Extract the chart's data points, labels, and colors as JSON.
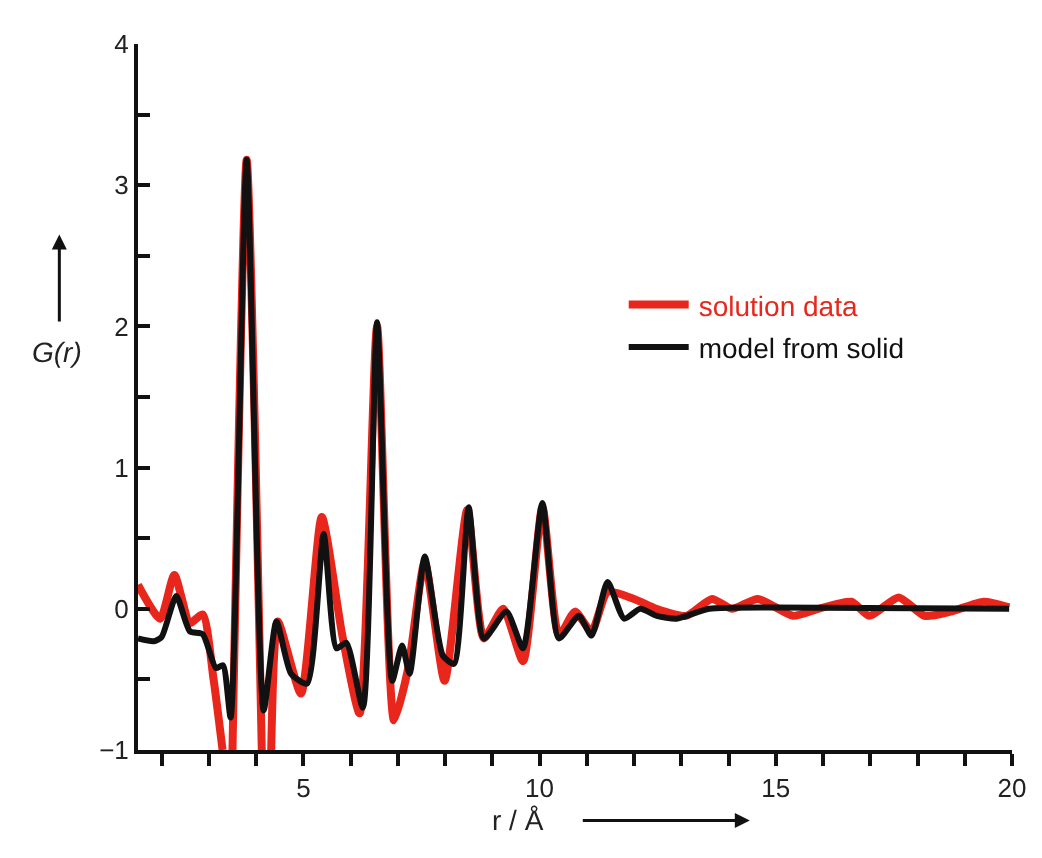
{
  "chart_data": {
    "type": "line",
    "xlabel": "r / Å",
    "ylabel": "G(r)",
    "xlim": [
      1.5,
      20
    ],
    "ylim": [
      -1,
      4
    ],
    "xticks": [
      {
        "value": 2,
        "label": null
      },
      {
        "value": 3,
        "label": null
      },
      {
        "value": 4,
        "label": null
      },
      5,
      {
        "value": 6,
        "label": null
      },
      {
        "value": 7,
        "label": null
      },
      {
        "value": 8,
        "label": null
      },
      {
        "value": 9,
        "label": null
      },
      10,
      {
        "value": 11,
        "label": null
      },
      {
        "value": 12,
        "label": null
      },
      {
        "value": 13,
        "label": null
      },
      {
        "value": 14,
        "label": null
      },
      15,
      {
        "value": 16,
        "label": null
      },
      {
        "value": 17,
        "label": null
      },
      {
        "value": 18,
        "label": null
      },
      {
        "value": 19,
        "label": null
      },
      20
    ],
    "yticks": [
      -1,
      {
        "value": -0.5,
        "label": null
      },
      0,
      {
        "value": 0.5,
        "label": null
      },
      1,
      {
        "value": 1.5,
        "label": null
      },
      2,
      {
        "value": 2.5,
        "label": null
      },
      3,
      {
        "value": 3.5,
        "label": null
      },
      4
    ],
    "legend": "top right",
    "line_style": "solid",
    "marker": "none",
    "series": [
      {
        "name": "solution data",
        "color": "#e8261c",
        "x": [
          1.5,
          1.97,
          2.27,
          2.6,
          2.87,
          3.1,
          3.29,
          3.4,
          3.5,
          3.8,
          4.12,
          4.22,
          4.32,
          4.46,
          4.95,
          5.39,
          5.82,
          6.19,
          6.56,
          6.92,
          7.22,
          7.57,
          7.99,
          8.47,
          8.82,
          9.23,
          9.65,
          10.06,
          10.41,
          10.75,
          11.1,
          11.44,
          12.0,
          12.47,
          13.1,
          13.65,
          14.07,
          14.62,
          15.37,
          15.9,
          16.6,
          16.98,
          17.6,
          18.15,
          18.7,
          19.4,
          19.94
        ],
        "values": [
          0.17,
          -0.07,
          0.24,
          -0.1,
          -0.04,
          -0.5,
          -1,
          null,
          -1,
          3.18,
          -1,
          null,
          -1,
          -0.09,
          -0.6,
          0.65,
          -0.18,
          -0.74,
          2.0,
          -0.79,
          -0.42,
          0.33,
          -0.51,
          0.7,
          -0.21,
          0.0,
          -0.37,
          0.72,
          -0.19,
          -0.02,
          -0.16,
          0.12,
          0.07,
          0.0,
          -0.05,
          0.07,
          0.0,
          0.07,
          -0.05,
          0.0,
          0.05,
          -0.05,
          0.08,
          -0.05,
          -0.02,
          0.05,
          0.01
        ]
      },
      {
        "name": "model from solid",
        "color": "#111111",
        "x": [
          1.5,
          1.83,
          2.0,
          2.31,
          2.6,
          2.87,
          3.15,
          3.3,
          3.46,
          3.8,
          4.16,
          4.43,
          4.74,
          5.08,
          5.43,
          5.7,
          5.91,
          6.26,
          6.56,
          6.88,
          7.09,
          7.25,
          7.57,
          7.95,
          8.19,
          8.5,
          8.82,
          9.3,
          9.65,
          10.06,
          10.41,
          10.83,
          11.1,
          11.44,
          11.79,
          12.13,
          12.48,
          12.9,
          13.59,
          14.97,
          19.94
        ],
        "values": [
          -0.21,
          -0.23,
          -0.2,
          0.09,
          -0.16,
          -0.18,
          -0.42,
          -0.4,
          -0.77,
          3.18,
          -0.72,
          -0.09,
          -0.46,
          -0.53,
          0.53,
          -0.28,
          -0.24,
          -0.7,
          2.03,
          -0.51,
          -0.26,
          -0.46,
          0.37,
          -0.33,
          -0.39,
          0.72,
          -0.21,
          -0.02,
          -0.28,
          0.75,
          -0.21,
          -0.05,
          -0.19,
          0.19,
          -0.07,
          0.0,
          -0.05,
          -0.07,
          0.0,
          0.01,
          0.0
        ]
      }
    ]
  }
}
